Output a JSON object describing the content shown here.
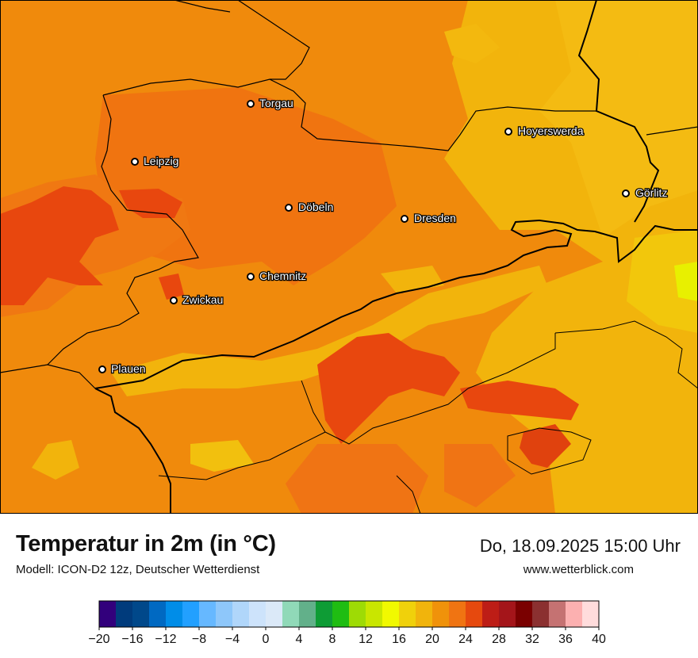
{
  "map": {
    "cities": [
      {
        "name": "Torgau"
      },
      {
        "name": "Hoyerswerda"
      },
      {
        "name": "Leipzig"
      },
      {
        "name": "Görlitz"
      },
      {
        "name": "Döbeln"
      },
      {
        "name": "Dresden"
      },
      {
        "name": "Chemnitz"
      },
      {
        "name": "Zwickau"
      },
      {
        "name": "Plauen"
      }
    ]
  },
  "legend": {
    "title": "Temperatur in 2m (in °C)",
    "model": "Modell: ICON-D2 12z, Deutscher Wetterdienst",
    "datetime": "Do, 18.09.2025 15:00 Uhr",
    "website": "www.wetterblick.com",
    "scale_min": -20,
    "scale_max": 40,
    "ticks": [
      "−20",
      "−16",
      "−12",
      "−8",
      "−4",
      "0",
      "4",
      "8",
      "12",
      "16",
      "20",
      "24",
      "28",
      "32",
      "36",
      "40"
    ],
    "colors": [
      "#32007c",
      "#003b7c",
      "#00488a",
      "#0069c2",
      "#008de8",
      "#22a0ff",
      "#66b8ff",
      "#8ec7fa",
      "#b0d6fa",
      "#cde3fb",
      "#dbe9f8",
      "#90d9b8",
      "#62b08a",
      "#0e9c35",
      "#1fbd12",
      "#9edb05",
      "#c9e600",
      "#f1f900",
      "#f0d10b",
      "#f1b40c",
      "#f0920a",
      "#f07412",
      "#e6490e",
      "#bd1d16",
      "#a4151a",
      "#7a0000",
      "#8b3030",
      "#c57272",
      "#fcb0b0",
      "#ffdcdc"
    ]
  }
}
